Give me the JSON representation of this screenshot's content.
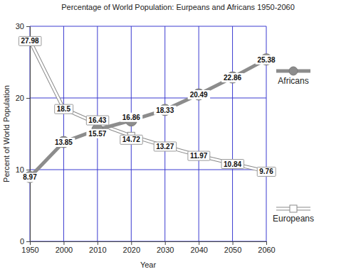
{
  "chart_data": {
    "type": "line",
    "title": "Percentage of World Population: Eurpeans and Africans 1950-2060",
    "x_label": "Year",
    "y_label": "Percent of World Population",
    "categories": [
      "1950",
      "2000",
      "2010",
      "2020",
      "2030",
      "2040",
      "2050",
      "2060"
    ],
    "series": [
      {
        "name": "Europeans",
        "color": "#ffffff",
        "marker": "square",
        "values": [
          27.98,
          18.5,
          16.43,
          14.72,
          13.27,
          11.97,
          10.84,
          9.76
        ]
      },
      {
        "name": "Africans",
        "color": "#8c8c8c",
        "marker": "circle",
        "values": [
          8.97,
          13.85,
          15.57,
          16.86,
          18.33,
          20.49,
          22.86,
          25.38
        ]
      }
    ],
    "ylim": [
      0,
      30
    ],
    "yticks": [
      0,
      10,
      20,
      30
    ],
    "grid": true,
    "data_labels": true,
    "legend": "right"
  }
}
